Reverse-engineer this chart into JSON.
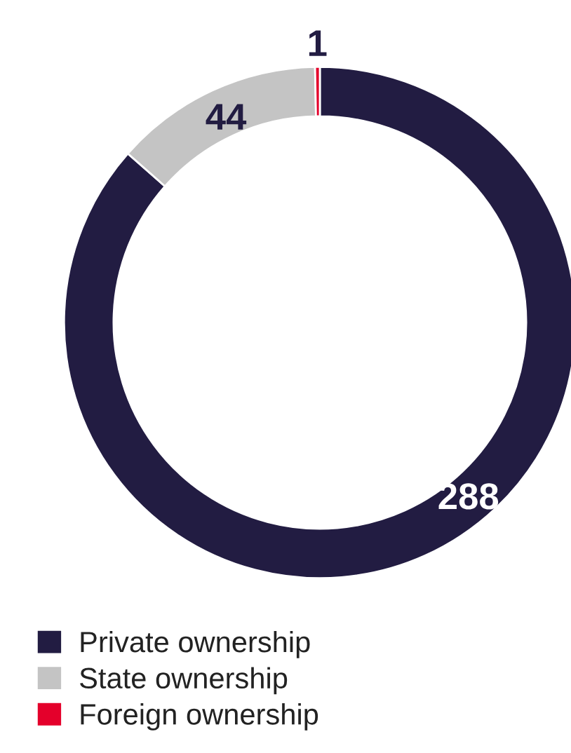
{
  "chart_data": {
    "type": "donut",
    "categories": [
      "Private ownership",
      "State ownership",
      "Foreign ownership"
    ],
    "values": [
      288,
      44,
      1
    ],
    "colors": [
      "#221c42",
      "#c4c4c4",
      "#e4002b"
    ],
    "data_labels": true,
    "legend": "bottom left"
  }
}
